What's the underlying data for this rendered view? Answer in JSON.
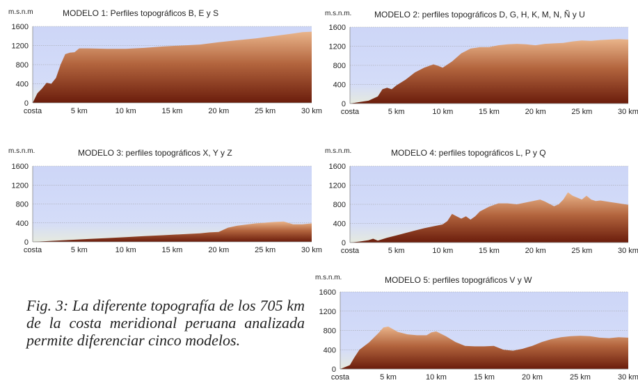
{
  "caption": "Fig. 3: La diferente topografía de los 705 km de la costa meridional peruana analizada permite diferenciar cinco modelos.",
  "style": {
    "sky_top": "#cdd6f7",
    "sky_bottom": "#dce2f9",
    "terrain_top": "#e9b48a",
    "terrain_bottom": "#6b1d0c",
    "grid": "#9a9a9a",
    "text": "#222222"
  },
  "chart_data": [
    {
      "type": "area",
      "title": "MODELO 1: Perfiles topográficos  B, E y S",
      "ylabel": "m.s.n.m",
      "ylim": [
        0,
        1600
      ],
      "yticks": [
        0,
        400,
        800,
        1200,
        1600
      ],
      "xlim": [
        0,
        30
      ],
      "xticks": [
        "costa",
        "5 km",
        "10 km",
        "15 km",
        "20 km",
        "25 km",
        "30 km"
      ],
      "grid": true,
      "x": [
        0,
        0.5,
        1,
        1.5,
        2,
        2.5,
        3,
        3.5,
        4,
        4.5,
        5,
        6,
        8,
        10,
        12,
        14,
        16,
        18,
        20,
        22,
        24,
        26,
        28,
        29,
        30
      ],
      "y": [
        0,
        200,
        300,
        420,
        400,
        520,
        800,
        1020,
        1050,
        1060,
        1140,
        1140,
        1130,
        1130,
        1150,
        1180,
        1200,
        1220,
        1270,
        1310,
        1350,
        1400,
        1450,
        1480,
        1490
      ]
    },
    {
      "type": "area",
      "title": "MODELO 2: perfiles topográficos  D, G, H, K, M,  N, Ñ y U",
      "ylabel": "m.s.n.m.",
      "ylim": [
        0,
        1600
      ],
      "yticks": [
        0,
        400,
        800,
        1200,
        1600
      ],
      "xlim": [
        0,
        30
      ],
      "xticks": [
        "costa",
        "5 km",
        "10 km",
        "15 km",
        "20 km",
        "25 km",
        "30 km"
      ],
      "grid": true,
      "x": [
        0,
        1,
        2,
        3,
        3.5,
        4,
        4.5,
        5,
        6,
        7,
        8,
        9,
        9.5,
        10,
        11,
        12,
        13,
        14,
        15,
        16,
        17,
        18,
        19,
        20,
        21,
        22,
        23,
        24,
        25,
        26,
        27,
        28,
        29,
        30
      ],
      "y": [
        0,
        30,
        60,
        150,
        300,
        330,
        300,
        380,
        500,
        650,
        750,
        820,
        790,
        750,
        880,
        1050,
        1150,
        1180,
        1180,
        1220,
        1240,
        1250,
        1240,
        1220,
        1250,
        1260,
        1270,
        1300,
        1320,
        1310,
        1330,
        1340,
        1350,
        1340
      ]
    },
    {
      "type": "area",
      "title": "MODELO 3: perfiles topográficos X, Y y Z",
      "ylabel": "m.s.n.m.",
      "ylim": [
        0,
        1600
      ],
      "yticks": [
        0,
        400,
        800,
        1200,
        1600
      ],
      "xlim": [
        0,
        30
      ],
      "xticks": [
        "costa",
        "5 km",
        "10 km",
        "15 km",
        "20 km",
        "25 km",
        "30 km"
      ],
      "grid": true,
      "x": [
        0,
        2,
        4,
        6,
        8,
        10,
        12,
        14,
        16,
        18,
        19,
        20,
        21,
        22,
        24,
        26,
        27,
        28,
        29,
        30
      ],
      "y": [
        0,
        20,
        40,
        60,
        80,
        100,
        120,
        140,
        160,
        180,
        200,
        210,
        300,
        340,
        390,
        420,
        430,
        370,
        370,
        390
      ]
    },
    {
      "type": "area",
      "title": "MODELO 4: perfiles topográficos L, P y Q",
      "ylabel": "m.s.n.m.",
      "ylim": [
        0,
        1600
      ],
      "yticks": [
        0,
        400,
        800,
        1200,
        1600
      ],
      "xlim": [
        0,
        30
      ],
      "xticks": [
        "costa",
        "5 km",
        "10 km",
        "15 km",
        "20 km",
        "25 km",
        "30 km"
      ],
      "grid": true,
      "x": [
        0,
        1,
        2,
        2.5,
        3,
        4,
        5,
        6,
        7,
        8,
        9,
        10,
        10.5,
        11,
        11.5,
        12,
        12.5,
        13,
        13.5,
        14,
        15,
        16,
        17,
        18,
        19,
        20,
        20.5,
        21,
        22,
        22.5,
        23,
        23.5,
        24,
        25,
        25.5,
        26,
        26.5,
        27,
        28,
        29,
        30
      ],
      "y": [
        0,
        20,
        50,
        80,
        40,
        100,
        150,
        200,
        250,
        300,
        340,
        380,
        450,
        600,
        550,
        500,
        550,
        480,
        550,
        650,
        750,
        820,
        820,
        800,
        840,
        880,
        900,
        860,
        760,
        800,
        900,
        1050,
        980,
        900,
        980,
        900,
        870,
        880,
        850,
        820,
        790
      ]
    },
    {
      "type": "area",
      "title": "MODELO 5: perfiles topográficos  V y W",
      "ylabel": "m.s.n.m.",
      "ylim": [
        0,
        1600
      ],
      "yticks": [
        0,
        400,
        800,
        1200,
        1600
      ],
      "xlim": [
        0,
        30
      ],
      "xticks": [
        "costa",
        "5 km",
        "10 km",
        "15 km",
        "20 km",
        "25 km",
        "30 km"
      ],
      "grid": true,
      "x": [
        0,
        1,
        1.5,
        2,
        3,
        4,
        4.5,
        5,
        6,
        7,
        8,
        9,
        9.5,
        10,
        11,
        12,
        13,
        14,
        15,
        16,
        17,
        18,
        19,
        20,
        21,
        22,
        23,
        24,
        25,
        26,
        27,
        28,
        29,
        30
      ],
      "y": [
        0,
        80,
        250,
        400,
        550,
        750,
        860,
        880,
        770,
        720,
        700,
        700,
        760,
        780,
        680,
        560,
        480,
        470,
        470,
        480,
        400,
        380,
        420,
        480,
        560,
        620,
        660,
        680,
        690,
        680,
        650,
        640,
        660,
        650
      ]
    }
  ]
}
